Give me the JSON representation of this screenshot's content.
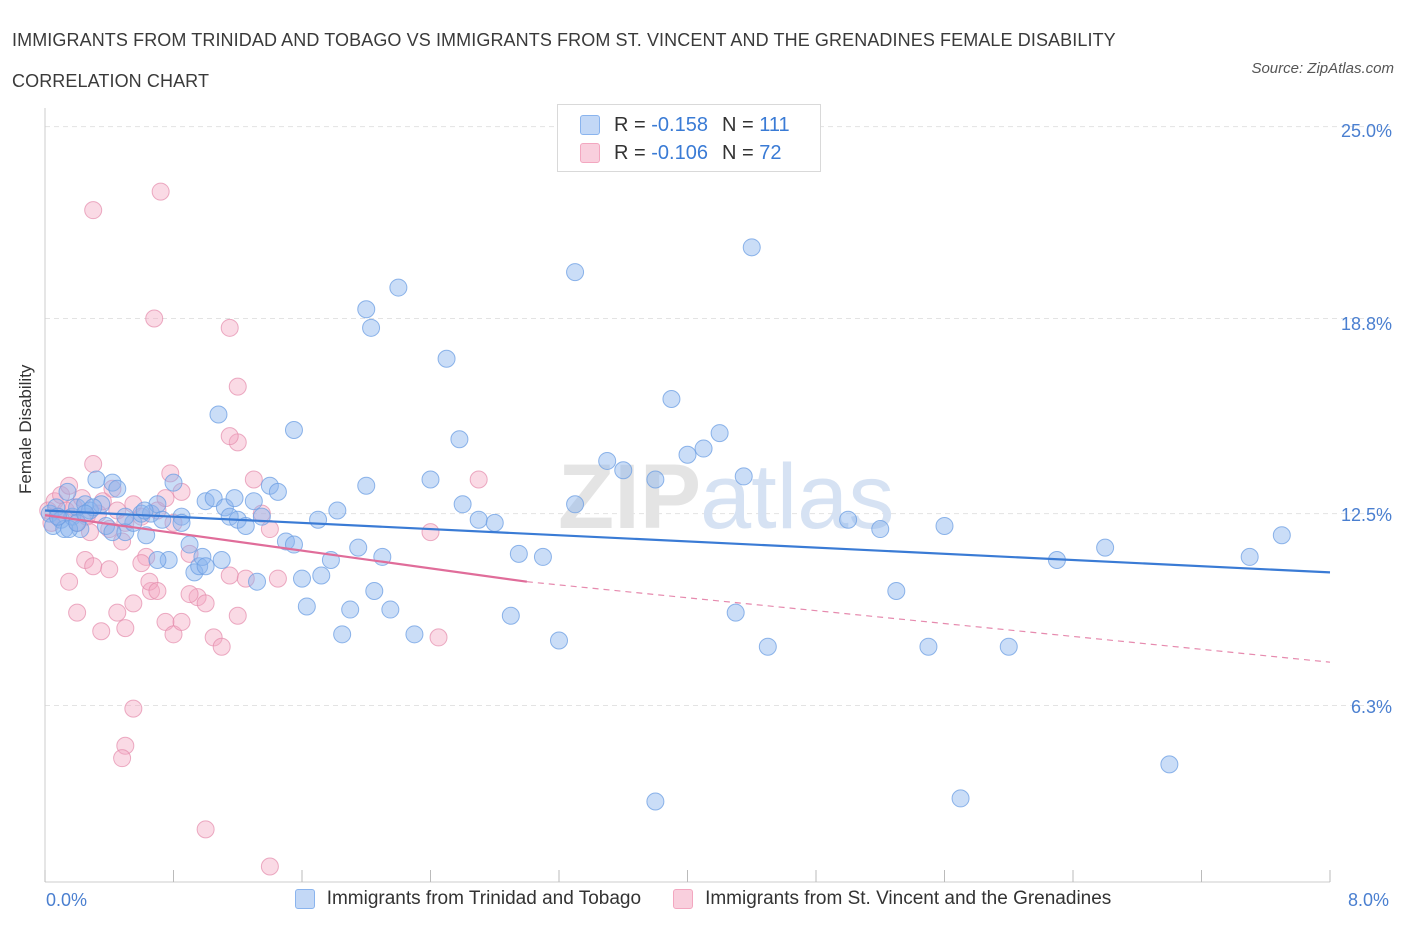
{
  "header": {
    "title": "IMMIGRANTS FROM TRINIDAD AND TOBAGO VS IMMIGRANTS FROM ST. VINCENT AND THE GRENADINES FEMALE DISABILITY CORRELATION CHART",
    "source": "Source: ZipAtlas.com"
  },
  "watermark": {
    "part1": "ZIP",
    "part2": "atlas"
  },
  "legend_top": {
    "row1": {
      "r_label": "R = ",
      "r_value": "-0.158",
      "n_label": "N = ",
      "n_value": "111"
    },
    "row2": {
      "r_label": "R = ",
      "r_value": "-0.106",
      "n_label": "N = ",
      "n_value": "72"
    }
  },
  "chart_data": {
    "type": "scatter",
    "title": "IMMIGRANTS FROM TRINIDAD AND TOBAGO VS IMMIGRANTS FROM ST. VINCENT AND THE GRENADINES FEMALE DISABILITY CORRELATION CHART",
    "xlabel": "",
    "ylabel": "Female Disability",
    "x_tick_labels": [
      "0.0%",
      "8.0%"
    ],
    "y_tick_labels": [
      "25.0%",
      "18.8%",
      "12.5%",
      "6.3%"
    ],
    "y_ticks": [
      25.0,
      18.8,
      12.5,
      6.3
    ],
    "xlim": [
      0,
      8
    ],
    "ylim": [
      0.6,
      25.6
    ],
    "grid": true,
    "legend_position": "bottom",
    "colors": {
      "series1": "#8ab4ee",
      "series2": "#f3a7c0",
      "line1": "#3a7bd5",
      "line2": "#e06d9a",
      "tick": "#4a7fd0"
    },
    "series": [
      {
        "name": "Immigrants from Trinidad and Tobago",
        "color": "#8ab4ee",
        "trend": {
          "x0": 0.0,
          "y0": 12.6,
          "x1": 8.0,
          "y1": 10.6
        },
        "points": [
          [
            0.03,
            12.5
          ],
          [
            0.05,
            12.1
          ],
          [
            0.07,
            12.7
          ],
          [
            0.1,
            12.3
          ],
          [
            0.12,
            12.0
          ],
          [
            0.14,
            13.2
          ],
          [
            0.17,
            12.4
          ],
          [
            0.2,
            12.7
          ],
          [
            0.22,
            12.0
          ],
          [
            0.25,
            12.8
          ],
          [
            0.28,
            12.6
          ],
          [
            0.32,
            13.6
          ],
          [
            0.35,
            12.8
          ],
          [
            0.38,
            12.1
          ],
          [
            0.42,
            13.5
          ],
          [
            0.45,
            13.3
          ],
          [
            0.5,
            11.9
          ],
          [
            0.55,
            12.2
          ],
          [
            0.6,
            12.5
          ],
          [
            0.63,
            11.8
          ],
          [
            0.66,
            12.5
          ],
          [
            0.7,
            12.8
          ],
          [
            0.73,
            12.3
          ],
          [
            0.77,
            11.0
          ],
          [
            0.8,
            13.5
          ],
          [
            0.85,
            12.4
          ],
          [
            0.9,
            11.5
          ],
          [
            0.93,
            10.6
          ],
          [
            0.96,
            10.8
          ],
          [
            0.98,
            11.1
          ],
          [
            1.0,
            12.9
          ],
          [
            1.05,
            13.0
          ],
          [
            1.08,
            15.7
          ],
          [
            1.1,
            11.0
          ],
          [
            1.12,
            12.7
          ],
          [
            1.15,
            12.4
          ],
          [
            1.18,
            13.0
          ],
          [
            1.2,
            12.3
          ],
          [
            1.3,
            12.9
          ],
          [
            1.32,
            10.3
          ],
          [
            1.35,
            12.4
          ],
          [
            1.4,
            13.4
          ],
          [
            1.45,
            13.2
          ],
          [
            1.5,
            11.6
          ],
          [
            1.55,
            11.5
          ],
          [
            1.6,
            10.4
          ],
          [
            1.63,
            9.5
          ],
          [
            1.7,
            12.3
          ],
          [
            1.72,
            10.5
          ],
          [
            1.78,
            11.0
          ],
          [
            1.82,
            12.6
          ],
          [
            1.85,
            8.6
          ],
          [
            1.9,
            9.4
          ],
          [
            1.95,
            11.4
          ],
          [
            2.0,
            13.4
          ],
          [
            2.05,
            10.0
          ],
          [
            2.1,
            11.1
          ],
          [
            2.15,
            9.4
          ],
          [
            2.3,
            8.6
          ],
          [
            2.4,
            13.6
          ],
          [
            2.6,
            12.8
          ],
          [
            2.7,
            12.3
          ],
          [
            2.8,
            12.2
          ],
          [
            2.9,
            9.2
          ],
          [
            2.95,
            11.2
          ],
          [
            3.1,
            11.1
          ],
          [
            3.2,
            8.4
          ],
          [
            3.3,
            12.8
          ],
          [
            3.5,
            14.2
          ],
          [
            3.6,
            13.9
          ],
          [
            3.8,
            13.6
          ],
          [
            3.9,
            16.2
          ],
          [
            4.0,
            14.4
          ],
          [
            4.1,
            14.6
          ],
          [
            4.2,
            15.1
          ],
          [
            4.3,
            9.3
          ],
          [
            4.35,
            13.7
          ],
          [
            4.5,
            8.2
          ],
          [
            5.0,
            12.3
          ],
          [
            5.2,
            12.0
          ],
          [
            5.3,
            10.0
          ],
          [
            5.5,
            8.2
          ],
          [
            5.6,
            12.1
          ],
          [
            6.0,
            8.2
          ],
          [
            6.3,
            11.0
          ],
          [
            6.6,
            11.4
          ],
          [
            7.0,
            4.4
          ],
          [
            7.5,
            11.1
          ],
          [
            7.7,
            11.8
          ],
          [
            2.0,
            19.1
          ],
          [
            2.2,
            19.8
          ],
          [
            2.5,
            17.5
          ],
          [
            3.3,
            20.3
          ],
          [
            4.4,
            21.1
          ],
          [
            2.03,
            18.5
          ],
          [
            1.55,
            15.2
          ],
          [
            2.58,
            14.9
          ],
          [
            3.8,
            3.2
          ],
          [
            5.7,
            3.3
          ],
          [
            0.5,
            12.4
          ],
          [
            0.15,
            12.0
          ],
          [
            0.3,
            12.7
          ],
          [
            0.42,
            11.9
          ],
          [
            0.62,
            12.6
          ],
          [
            0.7,
            11.0
          ],
          [
            0.85,
            12.2
          ],
          [
            1.0,
            10.8
          ],
          [
            1.25,
            12.1
          ],
          [
            0.2,
            12.2
          ],
          [
            0.08,
            12.4
          ],
          [
            0.25,
            12.5
          ]
        ]
      },
      {
        "name": "Immigrants from St. Vincent and the Grenadines",
        "color": "#f3a7c0",
        "trend": {
          "x0": 0.0,
          "y0": 12.45,
          "x1": 3.0,
          "y1": 10.3,
          "dash_x1": 8.0,
          "dash_y1": 7.7
        },
        "points": [
          [
            0.02,
            12.6
          ],
          [
            0.04,
            12.2
          ],
          [
            0.06,
            12.9
          ],
          [
            0.08,
            12.4
          ],
          [
            0.1,
            13.1
          ],
          [
            0.13,
            12.6
          ],
          [
            0.15,
            13.4
          ],
          [
            0.18,
            12.7
          ],
          [
            0.2,
            12.2
          ],
          [
            0.23,
            13.0
          ],
          [
            0.26,
            12.4
          ],
          [
            0.28,
            11.9
          ],
          [
            0.3,
            14.1
          ],
          [
            0.33,
            12.5
          ],
          [
            0.36,
            12.9
          ],
          [
            0.4,
            12.0
          ],
          [
            0.42,
            13.3
          ],
          [
            0.45,
            12.6
          ],
          [
            0.48,
            11.6
          ],
          [
            0.5,
            12.2
          ],
          [
            0.55,
            12.8
          ],
          [
            0.6,
            12.4
          ],
          [
            0.63,
            11.1
          ],
          [
            0.66,
            10.0
          ],
          [
            0.7,
            12.6
          ],
          [
            0.75,
            13.0
          ],
          [
            0.78,
            13.8
          ],
          [
            0.8,
            12.2
          ],
          [
            0.85,
            13.2
          ],
          [
            0.9,
            11.2
          ],
          [
            0.95,
            9.8
          ],
          [
            1.0,
            9.6
          ],
          [
            1.05,
            8.5
          ],
          [
            1.1,
            8.2
          ],
          [
            1.15,
            10.5
          ],
          [
            1.2,
            9.2
          ],
          [
            1.25,
            10.4
          ],
          [
            1.3,
            13.6
          ],
          [
            1.35,
            12.5
          ],
          [
            1.4,
            12.0
          ],
          [
            1.45,
            10.4
          ],
          [
            0.15,
            10.3
          ],
          [
            0.2,
            9.3
          ],
          [
            0.25,
            11.0
          ],
          [
            0.3,
            10.8
          ],
          [
            0.35,
            8.7
          ],
          [
            0.4,
            10.7
          ],
          [
            0.45,
            9.3
          ],
          [
            0.5,
            8.8
          ],
          [
            0.55,
            9.6
          ],
          [
            0.6,
            10.9
          ],
          [
            0.65,
            10.3
          ],
          [
            0.7,
            10.0
          ],
          [
            0.75,
            9.0
          ],
          [
            0.8,
            8.6
          ],
          [
            0.85,
            9.0
          ],
          [
            0.9,
            9.9
          ],
          [
            1.2,
            14.8
          ],
          [
            1.15,
            15.0
          ],
          [
            1.2,
            16.6
          ],
          [
            0.3,
            22.3
          ],
          [
            0.72,
            22.9
          ],
          [
            0.68,
            18.8
          ],
          [
            1.15,
            18.5
          ],
          [
            0.55,
            6.2
          ],
          [
            0.5,
            5.0
          ],
          [
            0.48,
            4.6
          ],
          [
            1.0,
            2.3
          ],
          [
            1.4,
            1.1
          ],
          [
            2.4,
            11.9
          ],
          [
            2.45,
            8.5
          ],
          [
            2.7,
            13.6
          ]
        ]
      }
    ]
  },
  "bottom_legend": {
    "item1": "Immigrants from Trinidad and Tobago",
    "item2": "Immigrants from St. Vincent and the Grenadines"
  }
}
